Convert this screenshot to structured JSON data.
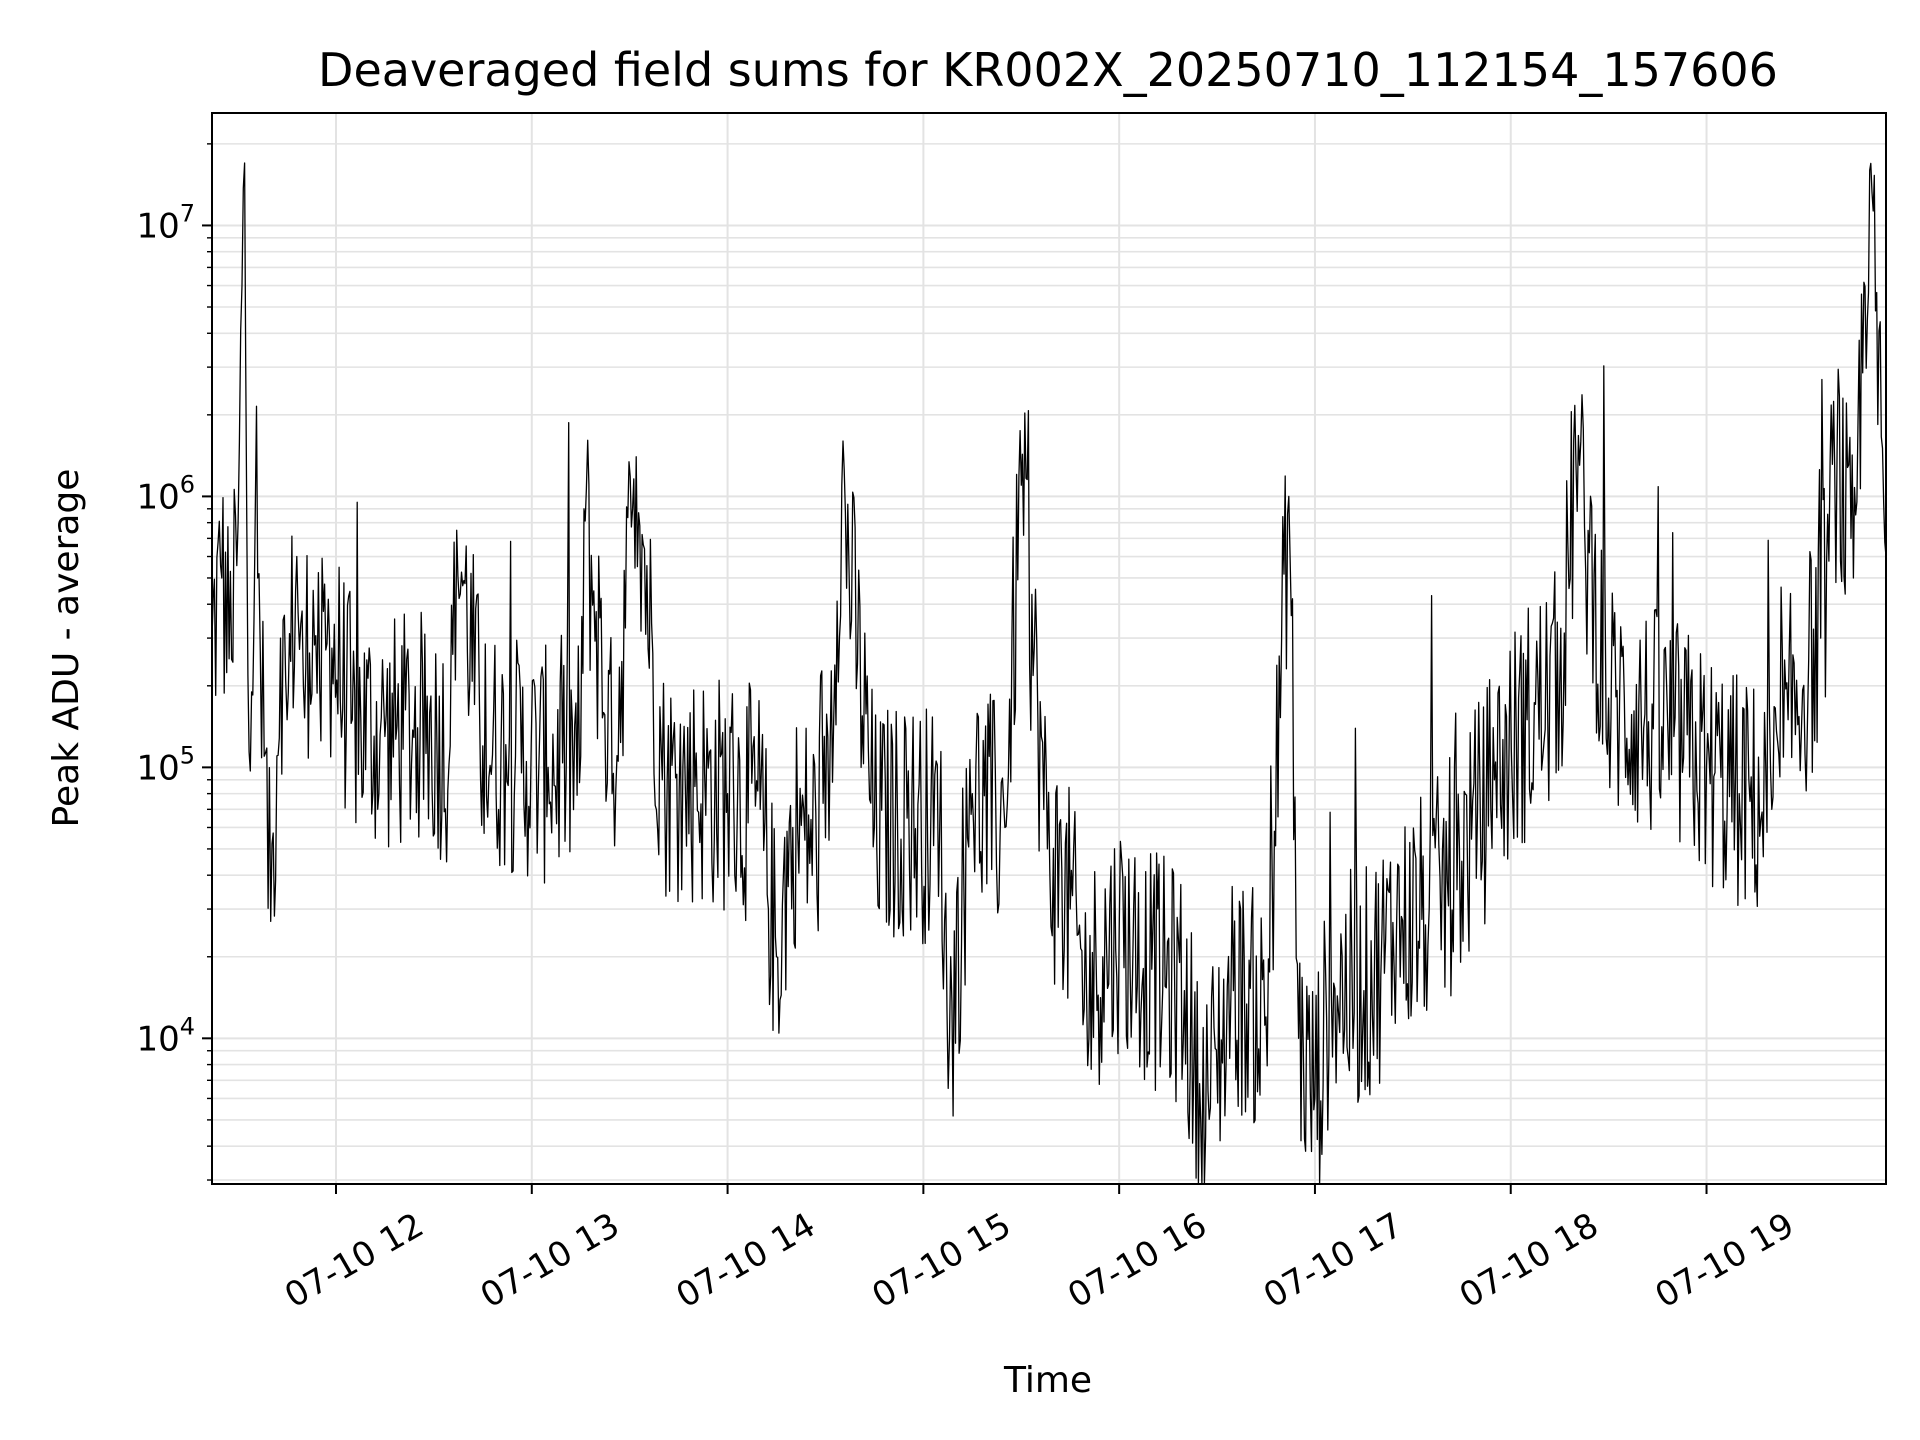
{
  "chart_data": {
    "type": "line",
    "title": "Deaveraged field sums for KR002X_20250710_112154_157606",
    "xlabel": "Time",
    "ylabel": "Peak ADU - average",
    "x_range": [
      "2025-07-10 11:22",
      "2025-07-10 19:55"
    ],
    "y_range": [
      2900,
      26000000
    ],
    "y_scale": "log",
    "grid": true,
    "line_color": "#000000",
    "x_ticks": [
      {
        "value": "2025-07-10 12:00",
        "label": "07-10 12"
      },
      {
        "value": "2025-07-10 13:00",
        "label": "07-10 13"
      },
      {
        "value": "2025-07-10 14:00",
        "label": "07-10 14"
      },
      {
        "value": "2025-07-10 15:00",
        "label": "07-10 15"
      },
      {
        "value": "2025-07-10 16:00",
        "label": "07-10 16"
      },
      {
        "value": "2025-07-10 17:00",
        "label": "07-10 17"
      },
      {
        "value": "2025-07-10 18:00",
        "label": "07-10 18"
      },
      {
        "value": "2025-07-10 19:00",
        "label": "07-10 19"
      }
    ],
    "y_ticks": [
      {
        "value": 10000,
        "base": "10",
        "exp": "4"
      },
      {
        "value": 100000,
        "base": "10",
        "exp": "5"
      },
      {
        "value": 1000000,
        "base": "10",
        "exp": "6"
      },
      {
        "value": 10000000,
        "base": "10",
        "exp": "7"
      }
    ],
    "series": [
      {
        "points": [
          [
            "2025-07-10 11:22",
            300000
          ],
          [
            "2025-07-10 11:25",
            500000
          ],
          [
            "2025-07-10 11:28",
            250000
          ],
          [
            "2025-07-10 11:30",
            800000
          ],
          [
            "2025-07-10 11:32",
            17000000
          ],
          [
            "2025-07-10 11:33",
            220000
          ],
          [
            "2025-07-10 11:36",
            500000
          ],
          [
            "2025-07-10 11:38",
            110000
          ],
          [
            "2025-07-10 11:40",
            27000
          ],
          [
            "2025-07-10 11:43",
            300000
          ],
          [
            "2025-07-10 11:45",
            150000
          ],
          [
            "2025-07-10 11:48",
            600000
          ],
          [
            "2025-07-10 11:50",
            200000
          ],
          [
            "2025-07-10 11:53",
            450000
          ],
          [
            "2025-07-10 11:55",
            200000
          ],
          [
            "2025-07-10 11:58",
            300000
          ],
          [
            "2025-07-10 12:05",
            150000
          ],
          [
            "2025-07-10 12:15",
            130000
          ],
          [
            "2025-07-10 12:25",
            140000
          ],
          [
            "2025-07-10 12:35",
            120000
          ],
          [
            "2025-07-10 12:37",
            750000
          ],
          [
            "2025-07-10 12:45",
            120000
          ],
          [
            "2025-07-10 12:55",
            110000
          ],
          [
            "2025-07-10 13:05",
            100000
          ],
          [
            "2025-07-10 13:15",
            110000
          ],
          [
            "2025-07-10 13:16",
            900000
          ],
          [
            "2025-07-10 13:25",
            95000
          ],
          [
            "2025-07-10 13:32",
            1400000
          ],
          [
            "2025-07-10 13:40",
            90000
          ],
          [
            "2025-07-10 13:50",
            85000
          ],
          [
            "2025-07-10 14:00",
            80000
          ],
          [
            "2025-07-10 14:10",
            70000
          ],
          [
            "2025-07-10 14:15",
            20000
          ],
          [
            "2025-07-10 14:20",
            60000
          ],
          [
            "2025-07-10 14:30",
            55000
          ],
          [
            "2025-07-10 14:35",
            1100000
          ],
          [
            "2025-07-10 14:45",
            60000
          ],
          [
            "2025-07-10 14:55",
            65000
          ],
          [
            "2025-07-10 15:05",
            60000
          ],
          [
            "2025-07-10 15:08",
            10000
          ],
          [
            "2025-07-10 15:15",
            80000
          ],
          [
            "2025-07-10 15:25",
            60000
          ],
          [
            "2025-07-10 15:30",
            1100000
          ],
          [
            "2025-07-10 15:38",
            50000
          ],
          [
            "2025-07-10 15:45",
            30000
          ],
          [
            "2025-07-10 15:50",
            15000
          ],
          [
            "2025-07-10 15:55",
            20000
          ],
          [
            "2025-07-10 16:00",
            25000
          ],
          [
            "2025-07-10 16:10",
            18000
          ],
          [
            "2025-07-10 16:20",
            15000
          ],
          [
            "2025-07-10 16:25",
            5000
          ],
          [
            "2025-07-10 16:35",
            15000
          ],
          [
            "2025-07-10 16:45",
            12000
          ],
          [
            "2025-07-10 16:52",
            1000000
          ],
          [
            "2025-07-10 16:55",
            10000
          ],
          [
            "2025-07-10 17:00",
            6000
          ],
          [
            "2025-07-10 17:05",
            15000
          ],
          [
            "2025-07-10 17:15",
            15000
          ],
          [
            "2025-07-10 17:25",
            25000
          ],
          [
            "2025-07-10 17:35",
            30000
          ],
          [
            "2025-07-10 17:45",
            45000
          ],
          [
            "2025-07-10 17:55",
            90000
          ],
          [
            "2025-07-10 18:05",
            150000
          ],
          [
            "2025-07-10 18:15",
            200000
          ],
          [
            "2025-07-10 18:20",
            1300000
          ],
          [
            "2025-07-10 18:30",
            180000
          ],
          [
            "2025-07-10 18:40",
            150000
          ],
          [
            "2025-07-10 18:50",
            130000
          ],
          [
            "2025-07-10 19:00",
            100000
          ],
          [
            "2025-07-10 19:10",
            80000
          ],
          [
            "2025-07-10 19:20",
            70000
          ],
          [
            "2025-07-10 19:25",
            150000
          ],
          [
            "2025-07-10 19:35",
            300000
          ],
          [
            "2025-07-10 19:40",
            1500000
          ],
          [
            "2025-07-10 19:45",
            500000
          ],
          [
            "2025-07-10 19:50",
            16000000
          ],
          [
            "2025-07-10 19:55",
            600000
          ]
        ]
      }
    ]
  }
}
